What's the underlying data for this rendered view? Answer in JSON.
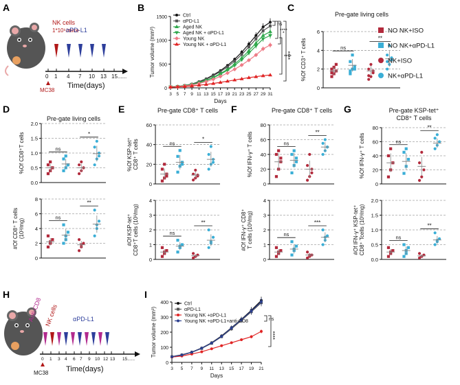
{
  "colors": {
    "red": "#b22a3c",
    "cyan": "#3aaed6",
    "ctrl": "#111111",
    "pdl1": "#555555",
    "aged": "#2ea84b",
    "young": "#ee7b86",
    "youngpd": "#e02424",
    "cd8": "#2b3f8e",
    "nk": "#b11818",
    "pd1": "#2d3e9b",
    "antiCD8": "#b22a8e"
  },
  "panelA": {
    "letter": "A",
    "nk": "NK cells",
    "nk_dose": "1*10⁶/mice",
    "pdl1": "αPD-L1",
    "mc38": "MC38",
    "xlabel": "Time(days)",
    "ticks": [
      "0",
      "1",
      "4",
      "7",
      "10",
      "13",
      "15......"
    ]
  },
  "panelH": {
    "letter": "H",
    "anti": "Anti-CD8",
    "nk": "NK cells",
    "pdl1": "αPD-L1",
    "mc38": "MC38",
    "xlabel": "Time(days)",
    "ticks": [
      "0",
      "1",
      "3",
      "4",
      "6",
      "7",
      "9",
      "10",
      "12",
      "13",
      "15......"
    ]
  },
  "legend": {
    "items": [
      {
        "label": "NO NK+ISO",
        "marker": "square",
        "color": "red"
      },
      {
        "label": "NO NK+αPD-L1",
        "marker": "square",
        "color": "cyan"
      },
      {
        "label": "NK+ISO",
        "marker": "circle",
        "color": "red"
      },
      {
        "label": "NK+αPD-L1",
        "marker": "circle",
        "color": "cyan"
      }
    ]
  },
  "chart_data": [
    {
      "panel": "B",
      "type": "line",
      "xlabel": "Days",
      "ylabel": "Tumor volume (mm³)",
      "ylim": [
        0,
        1500
      ],
      "x": [
        3,
        5,
        7,
        9,
        11,
        13,
        15,
        17,
        19,
        21,
        23,
        25,
        27,
        29,
        31
      ],
      "yticks": [
        0,
        500,
        1000,
        1500
      ],
      "series": [
        {
          "name": "Ctrl",
          "color": "ctrl",
          "marker": "circle",
          "values": [
            20,
            30,
            50,
            80,
            130,
            190,
            270,
            360,
            470,
            600,
            750,
            920,
            1100,
            1280,
            1380
          ]
        },
        {
          "name": "αPD-L1",
          "color": "pdl1",
          "marker": "square",
          "values": [
            20,
            30,
            48,
            76,
            122,
            180,
            255,
            340,
            440,
            560,
            700,
            860,
            1030,
            1200,
            1300
          ]
        },
        {
          "name": "Aged NK",
          "color": "aged",
          "marker": "triangle",
          "values": [
            20,
            28,
            45,
            70,
            110,
            160,
            220,
            300,
            390,
            500,
            630,
            780,
            940,
            1100,
            1180
          ]
        },
        {
          "name": "Aged NK + αPD-L1",
          "color": "aged",
          "marker": "triangle-down",
          "values": [
            20,
            28,
            44,
            68,
            106,
            152,
            210,
            285,
            370,
            470,
            590,
            730,
            880,
            1030,
            1100
          ]
        },
        {
          "name": "Young NK",
          "color": "young",
          "marker": "diamond",
          "values": [
            20,
            26,
            40,
            60,
            90,
            130,
            180,
            240,
            310,
            390,
            480,
            580,
            690,
            820,
            900
          ]
        },
        {
          "name": "Young NK + αPD-L1",
          "color": "youngpd",
          "marker": "triangle",
          "values": [
            15,
            20,
            28,
            40,
            55,
            72,
            92,
            115,
            140,
            165,
            190,
            215,
            235,
            255,
            270
          ]
        }
      ],
      "annotations": [
        "ns",
        "****",
        "*",
        "****",
        "****"
      ]
    },
    {
      "panel": "C",
      "type": "scatter",
      "title": "Pre-gate living cells",
      "ylabel": "%Of CD3⁺ T cells",
      "ylim": [
        0,
        6
      ],
      "yticks": [
        0,
        2,
        4,
        6
      ],
      "groups": [
        "NO NK+ISO",
        "NO NK+αPD-L1",
        "NK+ISO",
        "NK+αPD-L1"
      ],
      "values": [
        [
          1.2,
          1.5,
          1.8,
          2.0,
          2.2,
          2.5,
          1.6
        ],
        [
          1.5,
          2.0,
          2.3,
          2.8,
          3.5,
          2.0,
          1.8
        ],
        [
          0.9,
          1.2,
          1.6,
          2.0,
          2.5,
          1.8,
          1.3
        ],
        [
          2.0,
          2.5,
          3.0,
          3.5,
          4.5,
          3.2,
          2.8
        ]
      ],
      "means": [
        1.8,
        2.4,
        1.8,
        3.1
      ],
      "annotations": [
        "ns",
        "**"
      ]
    },
    {
      "panel": "D1",
      "type": "scatter",
      "title": "Pre-gate living cells",
      "ylabel": "%Of CD8⁺T cells",
      "ylim": [
        0,
        2
      ],
      "yticks": [
        "0.0",
        "0.5",
        "1.0",
        "1.5",
        "2.0"
      ],
      "values": [
        [
          0.3,
          0.4,
          0.5,
          0.6,
          0.7,
          0.5
        ],
        [
          0.4,
          0.5,
          0.6,
          0.8,
          0.9,
          0.6
        ],
        [
          0.3,
          0.4,
          0.5,
          0.6,
          0.7,
          0.5
        ],
        [
          0.6,
          0.8,
          1.0,
          1.2,
          1.4,
          0.9
        ]
      ],
      "means": [
        0.5,
        0.63,
        0.5,
        0.98
      ],
      "annotations": [
        "ns",
        "*"
      ]
    },
    {
      "panel": "D2",
      "type": "scatter",
      "ylabel": "#Of CD8⁺ T cells (10³/mg)",
      "ylim": [
        0,
        8
      ],
      "yticks": [
        0,
        2,
        4,
        6,
        8
      ],
      "values": [
        [
          1.5,
          2.0,
          2.5,
          3.0,
          2.2
        ],
        [
          2.0,
          3.0,
          3.5,
          4.5,
          2.5
        ],
        [
          1.0,
          1.5,
          2.0,
          2.5,
          1.8
        ],
        [
          3.0,
          4.0,
          5.0,
          6.5,
          4.5
        ]
      ],
      "means": [
        2.2,
        3.1,
        1.8,
        4.6
      ],
      "annotations": [
        "ns",
        "**"
      ]
    },
    {
      "panel": "E1",
      "type": "scatter",
      "title": "Pre-gate CD8⁺ T cells",
      "ylabel": "%Of KSP-tet⁺ CD8⁺ T cells",
      "ylim": [
        0,
        60
      ],
      "yticks": [
        0,
        20,
        40,
        60
      ],
      "values": [
        [
          3,
          6,
          10,
          15,
          20,
          8
        ],
        [
          12,
          18,
          22,
          28,
          34,
          20
        ],
        [
          4,
          6,
          8,
          10,
          14,
          9
        ],
        [
          15,
          20,
          25,
          30,
          38,
          22
        ]
      ],
      "means": [
        10,
        22,
        9,
        25
      ],
      "annotations": [
        "ns",
        "*"
      ]
    },
    {
      "panel": "E2",
      "type": "scatter",
      "ylabel": "#Of KSP-tet⁺ CD8⁺T cells (10³/mg)",
      "ylim": [
        0,
        4
      ],
      "yticks": [
        0,
        1,
        2,
        3,
        4
      ],
      "values": [
        [
          0.2,
          0.4,
          0.6,
          0.8,
          0.5
        ],
        [
          0.5,
          0.8,
          1.0,
          1.3,
          0.9
        ],
        [
          0.1,
          0.2,
          0.3,
          0.4,
          0.2
        ],
        [
          0.8,
          1.2,
          1.5,
          2.0,
          1.1
        ]
      ],
      "means": [
        0.5,
        0.9,
        0.25,
        1.3
      ],
      "annotations": [
        "ns",
        "**"
      ]
    },
    {
      "panel": "F1",
      "type": "scatter",
      "title": "Pre-gate CD8⁺ T cells",
      "ylabel": "%Of IFN-γ⁺ T cells",
      "ylim": [
        0,
        80
      ],
      "yticks": [
        0,
        20,
        40,
        60,
        80
      ],
      "values": [
        [
          10,
          20,
          30,
          40,
          45,
          35
        ],
        [
          15,
          25,
          35,
          40,
          45,
          30
        ],
        [
          5,
          10,
          15,
          25,
          40,
          20
        ],
        [
          40,
          45,
          50,
          55,
          60,
          50
        ]
      ],
      "means": [
        30,
        32,
        20,
        50
      ],
      "annotations": [
        "ns",
        "**"
      ]
    },
    {
      "panel": "F2",
      "type": "scatter",
      "ylabel": "#Of IFN-γ⁺ CD8⁺ T cells (10³/mg)",
      "ylim": [
        0,
        4
      ],
      "yticks": [
        0,
        1,
        2,
        3,
        4
      ],
      "values": [
        [
          0.2,
          0.4,
          0.6,
          0.8,
          0.5
        ],
        [
          0.3,
          0.6,
          0.9,
          1.2,
          0.7
        ],
        [
          0.1,
          0.2,
          0.3,
          0.5,
          0.3
        ],
        [
          1.0,
          1.3,
          1.6,
          2.0,
          1.5
        ]
      ],
      "means": [
        0.5,
        0.7,
        0.3,
        1.5
      ],
      "annotations": [
        "ns",
        "***"
      ]
    },
    {
      "panel": "G1",
      "type": "scatter",
      "title": "Pre-gate KSP-tet⁺ CD8⁺ T cells",
      "ylabel": "%Of IFN-γ⁺ T cells",
      "ylim": [
        0,
        80
      ],
      "yticks": [
        0,
        20,
        40,
        60,
        80
      ],
      "values": [
        [
          10,
          20,
          30,
          40,
          50
        ],
        [
          15,
          25,
          35,
          45,
          50
        ],
        [
          5,
          10,
          20,
          30,
          45
        ],
        [
          50,
          55,
          60,
          65,
          70
        ]
      ],
      "means": [
        30,
        32,
        25,
        58
      ],
      "annotations": [
        "ns",
        "**"
      ]
    },
    {
      "panel": "G2",
      "type": "scatter",
      "ylabel": "#Of IFN-γ⁺ KSP-tet⁺ CD8⁺ T cells (10³/mg)",
      "ylim": [
        0,
        2
      ],
      "yticks": [
        "0.0",
        "0.5",
        "1.0",
        "1.5",
        "2.0"
      ],
      "values": [
        [
          0.1,
          0.2,
          0.3,
          0.4,
          0.25
        ],
        [
          0.1,
          0.2,
          0.4,
          0.5,
          0.3
        ],
        [
          0.05,
          0.1,
          0.15,
          0.2,
          0.1
        ],
        [
          0.5,
          0.6,
          0.7,
          0.9,
          0.65
        ]
      ],
      "means": [
        0.25,
        0.3,
        0.12,
        0.66
      ],
      "annotations": [
        "ns",
        "**"
      ]
    },
    {
      "panel": "I",
      "type": "line",
      "xlabel": "Days",
      "ylabel": "Tumor volume (mm³)",
      "ylim": [
        0,
        400
      ],
      "yticks": [
        0,
        100,
        200,
        300,
        400
      ],
      "x": [
        3,
        5,
        7,
        9,
        11,
        13,
        15,
        17,
        19,
        21
      ],
      "series": [
        {
          "name": "Ctrl",
          "color": "ctrl",
          "marker": "circle",
          "values": [
            38,
            50,
            68,
            95,
            130,
            175,
            230,
            285,
            345,
            410
          ]
        },
        {
          "name": "αPD-L1",
          "color": "pdl1",
          "marker": "square",
          "values": [
            37,
            48,
            66,
            92,
            126,
            170,
            222,
            278,
            335,
            395
          ]
        },
        {
          "name": "Young NK +αPD-L1",
          "color": "youngpd",
          "marker": "circle",
          "values": [
            35,
            42,
            55,
            70,
            90,
            110,
            130,
            150,
            170,
            205
          ]
        },
        {
          "name": "Young NK +αPD-L1+anti-CD8",
          "color": "cd8",
          "marker": "circle",
          "values": [
            37,
            49,
            67,
            94,
            128,
            172,
            228,
            282,
            340,
            402
          ]
        }
      ],
      "annotations": [
        "ns",
        "****"
      ]
    }
  ]
}
